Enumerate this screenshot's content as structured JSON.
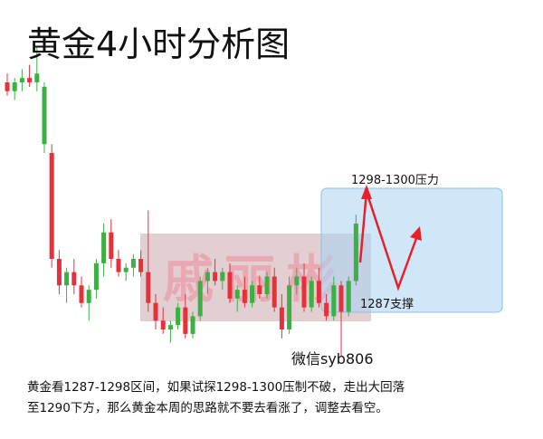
{
  "chart_data": {
    "type": "candlestick",
    "title": "黄金4小时分析图",
    "categories": [
      null,
      null,
      null,
      null,
      null,
      null,
      null,
      null,
      null,
      null,
      null,
      null,
      null,
      null,
      null,
      null,
      null,
      null,
      null,
      null,
      null,
      null,
      null,
      null,
      null,
      null,
      null,
      null,
      null,
      null,
      null,
      null,
      null,
      null,
      null,
      null,
      null,
      null,
      null,
      null,
      null,
      null,
      null,
      null,
      null,
      null,
      null,
      null
    ],
    "open": [
      1312,
      1311,
      1312,
      1312.5,
      1312,
      1305,
      1304,
      1292,
      1289,
      1290.5,
      1289,
      1287,
      1288.5,
      1291.5,
      1295,
      1292,
      1290.5,
      1291,
      1292,
      1290.5,
      1287,
      1285,
      1284,
      1284.5,
      1286.5,
      1283.5,
      1285.5,
      1289.5,
      1290.5,
      1289.5,
      1290.5,
      1287.5,
      1288.5,
      1287,
      1289,
      1288,
      1290,
      1286.5,
      1284,
      1289,
      1290,
      1286.5,
      1289.5,
      1287,
      1285.5,
      1289,
      1286,
      1289.5
    ],
    "high": [
      1313,
      1312.5,
      1313.5,
      1314,
      1316,
      1312,
      1305,
      1293,
      1291,
      1292,
      1290,
      1289,
      1292,
      1296,
      1296.5,
      1293,
      1291.5,
      1292.5,
      1293,
      1297.5,
      1288,
      1286.5,
      1285,
      1287,
      1288,
      1286,
      1290,
      1291,
      1292,
      1291,
      1291.5,
      1289,
      1290,
      1289.5,
      1290,
      1290.5,
      1291,
      1288,
      1290,
      1291,
      1291.5,
      1290,
      1291,
      1288,
      1290,
      1289.5,
      1290,
      1297
    ],
    "low": [
      1310.5,
      1310,
      1311,
      1311.5,
      1311,
      1304,
      1291,
      1288,
      1287,
      1288,
      1286.5,
      1285,
      1287.5,
      1290,
      1291,
      1290,
      1289.5,
      1290,
      1290,
      1286,
      1284,
      1283.5,
      1282.5,
      1284,
      1283,
      1283,
      1285,
      1288,
      1289,
      1288.5,
      1287,
      1286,
      1286.5,
      1286.5,
      1287.5,
      1287.5,
      1286,
      1283,
      1283.5,
      1288,
      1286,
      1286,
      1286.5,
      1285,
      1285,
      1281,
      1285.5,
      1289
    ],
    "close": [
      1311,
      1312,
      1312.5,
      1312,
      1313,
      1311.5,
      1292,
      1289,
      1290.5,
      1289,
      1287,
      1288.5,
      1291.5,
      1295,
      1292,
      1290.5,
      1291,
      1292,
      1290.5,
      1287,
      1285,
      1284,
      1284.5,
      1286.5,
      1283.5,
      1285.5,
      1289.5,
      1290.5,
      1289.5,
      1290.5,
      1287.5,
      1288.5,
      1287,
      1289,
      1288,
      1290,
      1286.5,
      1284,
      1289,
      1290,
      1286.5,
      1289.5,
      1287,
      1285.5,
      1289,
      1286,
      1289.5,
      1296
    ],
    "up_color": "#3cb043",
    "down_color": "#e8303a",
    "ylim": [
      1280,
      1320
    ],
    "annotations": [
      "1298-1300压力",
      "1287支撑",
      "微信syb806"
    ],
    "watermark": "戚丽彬",
    "note_lines": [
      "黄金看1287-1298区间，如果试探1298-1300压制不破，走出大回落",
      "至1290下方，那么黄金本周的思路就不要去看涨了，调整去看空。"
    ]
  }
}
